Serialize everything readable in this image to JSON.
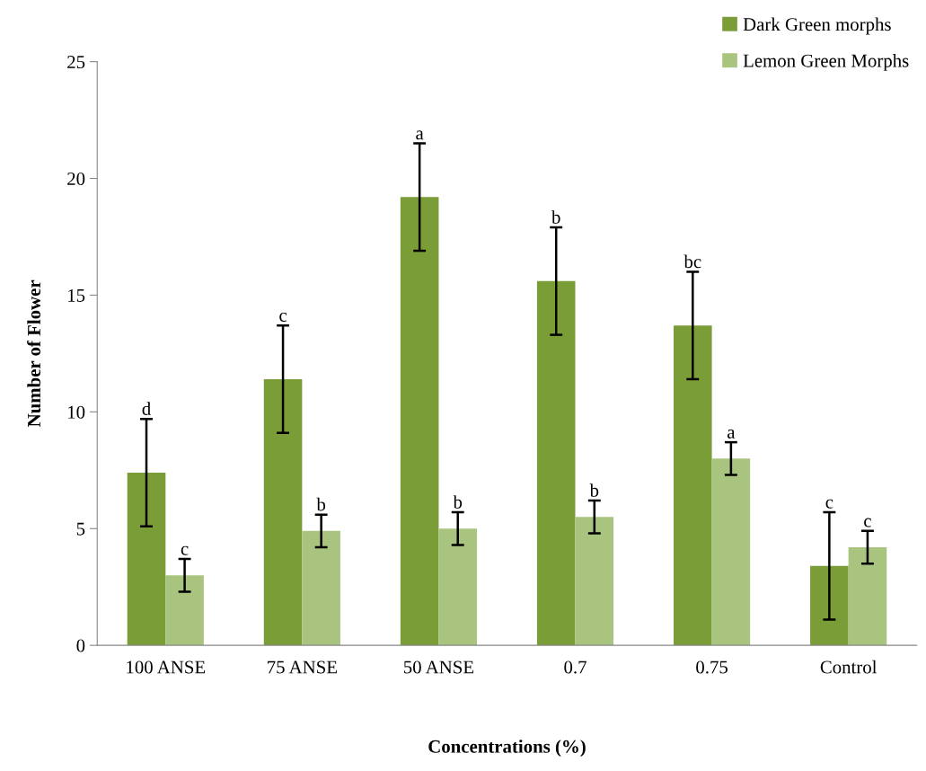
{
  "chart_data": {
    "type": "bar",
    "xlabel": "Concentrations (%)",
    "ylabel": "Number of Flower",
    "categories": [
      "100 ANSE",
      "75 ANSE",
      "50 ANSE",
      "0.7",
      "0.75",
      "Control"
    ],
    "series": [
      {
        "name": "Dark Green morphs",
        "color": "#7b9d38",
        "values": [
          7.4,
          11.4,
          19.2,
          15.6,
          13.7,
          3.4
        ],
        "errors": [
          2.3,
          2.3,
          2.3,
          2.3,
          2.3,
          2.3
        ],
        "value_labels": [
          "d",
          "c",
          "a",
          "b",
          "bc",
          "c"
        ]
      },
      {
        "name": "Lemon Green Morphs",
        "color": "#a8c47e",
        "values": [
          3.0,
          4.9,
          5.0,
          5.5,
          8.0,
          4.2
        ],
        "errors": [
          0.7,
          0.7,
          0.7,
          0.7,
          0.7,
          0.7
        ],
        "value_labels": [
          "c",
          "b",
          "b",
          "b",
          "a",
          "c"
        ]
      }
    ],
    "ylim": [
      0,
      25
    ],
    "yticks": [
      0,
      5,
      10,
      15,
      20,
      25
    ],
    "grid": false,
    "legend": "top right"
  }
}
